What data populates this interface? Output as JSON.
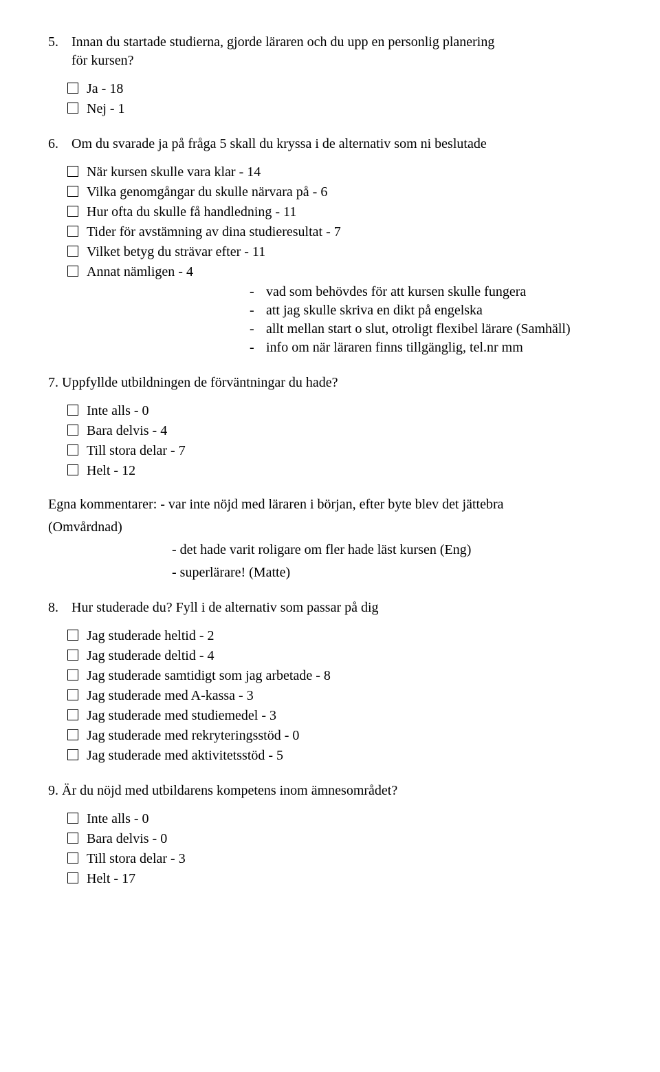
{
  "q5": {
    "num": "5.",
    "text_line1": "Innan du startade studierna, gjorde läraren och du upp en personlig planering",
    "text_line2": "för kursen?",
    "opts": [
      "Ja - 18",
      "Nej - 1"
    ]
  },
  "q6": {
    "num": "6.",
    "text": "Om du svarade ja på fråga 5 skall du kryssa i de alternativ som ni beslutade",
    "opts": [
      "När kursen skulle vara klar - 14",
      "Vilka genomgångar du skulle närvara på - 6",
      "Hur ofta du skulle få handledning - 11",
      "Tider för avstämning av dina studieresultat - 7",
      "Vilket betyg du strävar efter - 11",
      "Annat nämligen  - 4"
    ],
    "bullets": [
      "vad som behövdes för att kursen skulle fungera",
      "att jag skulle skriva en dikt på engelska",
      "allt mellan start o slut, otroligt flexibel lärare (Samhäll)",
      "info om när läraren finns tillgänglig, tel.nr mm"
    ]
  },
  "q7": {
    "text": "7. Uppfyllde utbildningen de förväntningar du hade?",
    "opts": [
      "Inte alls - 0",
      "Bara delvis - 4",
      "Till stora delar - 7",
      "Helt - 12"
    ],
    "comment_l1": "Egna kommentarer: - var inte nöjd med läraren i början, efter byte blev det jättebra",
    "comment_l2": "(Omvårdnad)",
    "comment_l3": "- det hade varit roligare om fler hade läst kursen (Eng)",
    "comment_l4": "- superlärare! (Matte)"
  },
  "q8": {
    "num": "8.",
    "text": "Hur studerade du? Fyll i de alternativ som passar på dig",
    "opts": [
      "Jag studerade heltid - 2",
      "Jag studerade deltid - 4",
      "Jag studerade samtidigt som jag arbetade - 8",
      "Jag studerade med A-kassa - 3",
      "Jag studerade med studiemedel - 3",
      "Jag studerade med rekryteringsstöd  - 0",
      "Jag studerade med aktivitetsstöd - 5"
    ]
  },
  "q9": {
    "text": "9. Är du nöjd med utbildarens kompetens inom ämnesområdet?",
    "opts": [
      "Inte alls - 0",
      "Bara delvis - 0",
      "Till stora delar - 3",
      "Helt - 17"
    ]
  }
}
